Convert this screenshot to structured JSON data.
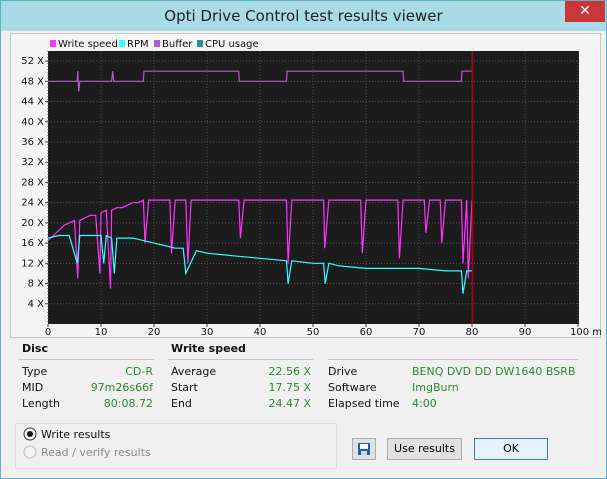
{
  "window": {
    "title": "Opti Drive Control test results viewer"
  },
  "chart_data": {
    "type": "line",
    "xlim": [
      0,
      100
    ],
    "ylim": [
      0,
      54
    ],
    "xticks": [
      0,
      10,
      20,
      30,
      40,
      50,
      60,
      70,
      80,
      90,
      {
        "value": 100,
        "label": "100 min"
      }
    ],
    "yticks": [
      {
        "value": 4,
        "label": "4 X"
      },
      {
        "value": 8,
        "label": "8 X"
      },
      {
        "value": 12,
        "label": "12 X"
      },
      {
        "value": 16,
        "label": "16 X"
      },
      {
        "value": 20,
        "label": "20 X"
      },
      {
        "value": 24,
        "label": "24 X"
      },
      {
        "value": 28,
        "label": "28 X"
      },
      {
        "value": 32,
        "label": "32 X"
      },
      {
        "value": 36,
        "label": "36 X"
      },
      {
        "value": 40,
        "label": "40 X"
      },
      {
        "value": 44,
        "label": "44 X"
      },
      {
        "value": 48,
        "label": "48 X"
      },
      {
        "value": 52,
        "label": "52 X"
      }
    ],
    "grid": true,
    "marker_x": 80.1,
    "marker_color": "#c00000",
    "series": [
      {
        "name": "Write speed",
        "color": "#ff33ff",
        "x": [
          0,
          1,
          2,
          3,
          4,
          5,
          5.6,
          6,
          7,
          8,
          9,
          9.8,
          10,
          11,
          11.8,
          12,
          13,
          14,
          15,
          16,
          17,
          18,
          18.3,
          19,
          20,
          22,
          23,
          23.3,
          24,
          26,
          26.4,
          27,
          30,
          34,
          36,
          36.3,
          37,
          40,
          45,
          45.3,
          46,
          50,
          52,
          52.2,
          53,
          56,
          59,
          59.3,
          60,
          64,
          66,
          66.3,
          67,
          71,
          71.3,
          72,
          74,
          74.3,
          75,
          78,
          78.3,
          79,
          79.3,
          80
        ],
        "values": [
          16.5,
          17.5,
          18.5,
          19.5,
          20,
          20.5,
          9,
          20.5,
          21,
          21.5,
          21.5,
          10,
          22,
          22.5,
          7,
          22.5,
          23,
          23,
          23.5,
          24,
          24,
          24.5,
          16,
          24.5,
          24.5,
          24.5,
          24.5,
          14,
          24.5,
          24.5,
          12,
          24.5,
          24.5,
          24.5,
          24.5,
          17,
          24.5,
          24.5,
          24.5,
          12,
          24.5,
          24.5,
          24.5,
          15,
          24.5,
          24.5,
          24.5,
          14,
          24.5,
          24.5,
          24.5,
          13,
          24.5,
          24.5,
          18,
          24.5,
          24.5,
          16,
          24.5,
          24.5,
          12,
          24.5,
          9,
          24.5
        ]
      },
      {
        "name": "RPM",
        "color": "#33ffff",
        "x": [
          0,
          2,
          4,
          5.5,
          6,
          8,
          10,
          10.5,
          11,
          12,
          12.5,
          13,
          14,
          16,
          18,
          20,
          22,
          24,
          25.5,
          26,
          28,
          30,
          35,
          40,
          45,
          45.3,
          46,
          50,
          52,
          52.3,
          53,
          55,
          60,
          65,
          70,
          75,
          78,
          78.3,
          79,
          80
        ],
        "values": [
          17,
          17.5,
          17.5,
          12,
          17.5,
          17.5,
          17.5,
          12,
          17.5,
          17,
          10,
          17,
          17,
          17,
          16.5,
          16,
          15.5,
          15,
          15,
          10,
          14.5,
          14,
          13.5,
          13,
          12.5,
          8,
          12.5,
          12,
          12,
          8,
          12,
          11.5,
          11,
          11,
          11,
          10.5,
          10.5,
          6,
          10.5,
          10.5
        ]
      },
      {
        "name": "Buffer",
        "color": "#b05cc8",
        "x": [
          0,
          5.5,
          5.6,
          5.8,
          6,
          12,
          12.2,
          12.4,
          18,
          18.1,
          36,
          36.1,
          45,
          45.1,
          67,
          67.1,
          70,
          75,
          78,
          78.1,
          80
        ],
        "values": [
          48,
          48,
          50,
          46,
          48,
          48,
          50,
          48,
          48,
          50,
          50,
          48,
          48,
          50,
          50,
          48,
          48,
          48,
          48,
          50,
          50
        ]
      },
      {
        "name": "CPU usage",
        "color": "#2f9090",
        "x": [],
        "values": []
      }
    ]
  },
  "disc": {
    "heading": "Disc",
    "rows": [
      [
        "Type",
        "CD-R"
      ],
      [
        "MID",
        "97m26s66f"
      ],
      [
        "Length",
        "80:08.72"
      ]
    ]
  },
  "write_speed": {
    "heading": "Write speed",
    "rows": [
      [
        "Average",
        "22.56 X"
      ],
      [
        "Start",
        "17.75 X"
      ],
      [
        "End",
        "24.47 X"
      ]
    ]
  },
  "drive_info": {
    "rows": [
      [
        "Drive",
        "BENQ DVD  DD DW1640 BSRB"
      ],
      [
        "Software",
        "ImgBurn"
      ],
      [
        "Elapsed time",
        "4:00"
      ]
    ]
  },
  "options": {
    "write_results": "Write results",
    "read_verify": "Read / verify results"
  },
  "buttons": {
    "use_results": "Use results",
    "ok": "OK"
  }
}
